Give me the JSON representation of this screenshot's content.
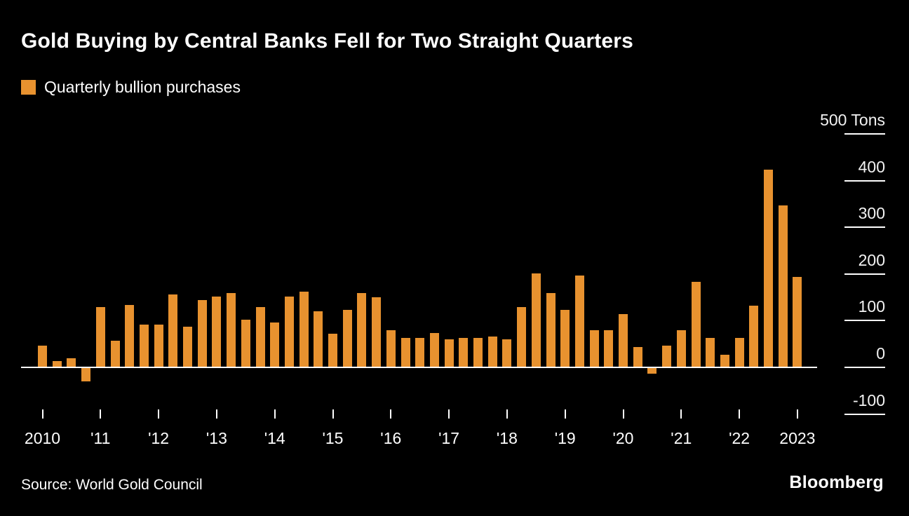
{
  "title": "Gold Buying by Central Banks Fell for Two Straight Quarters",
  "legend": {
    "label": "Quarterly bullion purchases",
    "swatch_color": "#E8922F"
  },
  "source": "Source: World Gold Council",
  "brand": "Bloomberg",
  "chart_data": {
    "type": "bar",
    "title": "Gold Buying by Central Banks Fell for Two Straight Quarters",
    "legend": "Quarterly bullion purchases",
    "unit": "Tons",
    "bar_color": "#E8922F",
    "background_color": "#000000",
    "ylim": [
      -100,
      500
    ],
    "y_tick_values": [
      500,
      400,
      300,
      200,
      100,
      0,
      -100
    ],
    "y_tick_labels": [
      "500 Tons",
      "400",
      "300",
      "200",
      "100",
      "0",
      "-100"
    ],
    "x_tick_labels": [
      "2010",
      "'11",
      "'12",
      "'13",
      "'14",
      "'15",
      "'16",
      "'17",
      "'18",
      "'19",
      "'20",
      "'21",
      "'22",
      "2023"
    ],
    "quarters": [
      "2010 Q1",
      "2010 Q2",
      "2010 Q3",
      "2010 Q4",
      "2011 Q1",
      "2011 Q2",
      "2011 Q3",
      "2011 Q4",
      "2012 Q1",
      "2012 Q2",
      "2012 Q3",
      "2012 Q4",
      "2013 Q1",
      "2013 Q2",
      "2013 Q3",
      "2013 Q4",
      "2014 Q1",
      "2014 Q2",
      "2014 Q3",
      "2014 Q4",
      "2015 Q1",
      "2015 Q2",
      "2015 Q3",
      "2015 Q4",
      "2016 Q1",
      "2016 Q2",
      "2016 Q3",
      "2016 Q4",
      "2017 Q1",
      "2017 Q2",
      "2017 Q3",
      "2017 Q4",
      "2018 Q1",
      "2018 Q2",
      "2018 Q3",
      "2018 Q4",
      "2019 Q1",
      "2019 Q2",
      "2019 Q3",
      "2019 Q4",
      "2020 Q1",
      "2020 Q2",
      "2020 Q3",
      "2020 Q4",
      "2021 Q1",
      "2021 Q2",
      "2021 Q3",
      "2021 Q4",
      "2022 Q1",
      "2022 Q2",
      "2022 Q3",
      "2022 Q4",
      "2023 Q1"
    ],
    "values": [
      45,
      12,
      18,
      -28,
      128,
      55,
      132,
      90,
      90,
      155,
      85,
      142,
      150,
      158,
      100,
      128,
      95,
      150,
      160,
      118,
      70,
      122,
      158,
      148,
      78,
      62,
      62,
      72,
      58,
      62,
      62,
      65,
      58,
      128,
      200,
      158,
      122,
      195,
      78,
      78,
      112,
      42,
      -12,
      45,
      78,
      182,
      62,
      25,
      62,
      130,
      422,
      345,
      192
    ]
  }
}
